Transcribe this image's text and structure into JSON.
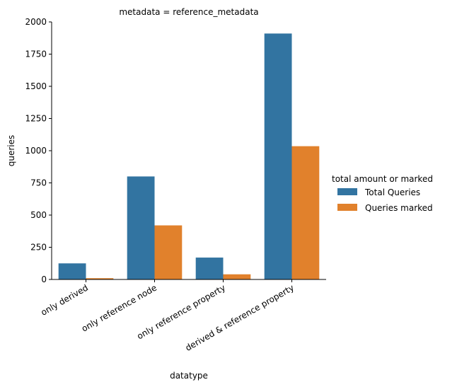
{
  "chart_data": {
    "type": "bar",
    "title": "metadata = reference_metadata",
    "xlabel": "datatype",
    "ylabel": "queries",
    "ylim": [
      0,
      2000
    ],
    "yticks": [
      0,
      250,
      500,
      750,
      1000,
      1250,
      1500,
      1750,
      2000
    ],
    "grid": false,
    "categories": [
      "only derived",
      "only reference node",
      "only reference property",
      "derived & reference property"
    ],
    "series": [
      {
        "name": "Total Queries",
        "color": "#3274a1",
        "values": [
          125,
          800,
          170,
          1910
        ]
      },
      {
        "name": "Queries marked",
        "color": "#e1812c",
        "values": [
          10,
          420,
          40,
          1035
        ]
      }
    ],
    "legend": {
      "title": "total amount or marked",
      "placement": "right"
    }
  }
}
